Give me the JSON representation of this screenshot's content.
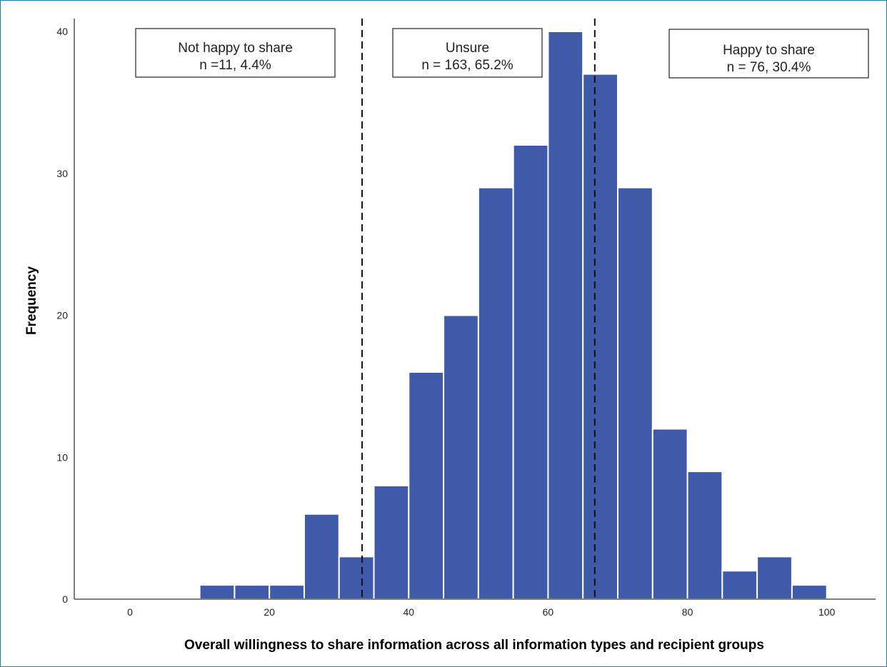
{
  "chart_data": {
    "type": "bar",
    "subtype": "histogram",
    "xlabel": "Overall willingness to share information across all information types and recipient groups",
    "ylabel": "Frequency",
    "xlim": [
      -8,
      107
    ],
    "ylim": [
      0,
      40
    ],
    "xticks": [
      0,
      20,
      40,
      60,
      80,
      100
    ],
    "yticks": [
      0,
      10,
      20,
      30,
      40
    ],
    "bar_color": "#3f5aa8",
    "bar_edge_color": "#ffffff",
    "bin_width": 5,
    "bins": [
      {
        "start": 10,
        "end": 15,
        "value": 1
      },
      {
        "start": 15,
        "end": 20,
        "value": 1
      },
      {
        "start": 20,
        "end": 25,
        "value": 1
      },
      {
        "start": 25,
        "end": 30,
        "value": 6
      },
      {
        "start": 30,
        "end": 35,
        "value": 3
      },
      {
        "start": 35,
        "end": 40,
        "value": 8
      },
      {
        "start": 40,
        "end": 45,
        "value": 16
      },
      {
        "start": 45,
        "end": 50,
        "value": 20
      },
      {
        "start": 50,
        "end": 55,
        "value": 29
      },
      {
        "start": 55,
        "end": 60,
        "value": 32
      },
      {
        "start": 60,
        "end": 65,
        "value": 40
      },
      {
        "start": 65,
        "end": 70,
        "value": 37
      },
      {
        "start": 70,
        "end": 75,
        "value": 29
      },
      {
        "start": 75,
        "end": 80,
        "value": 12
      },
      {
        "start": 80,
        "end": 85,
        "value": 9
      },
      {
        "start": 85,
        "end": 90,
        "value": 2
      },
      {
        "start": 90,
        "end": 95,
        "value": 3
      },
      {
        "start": 95,
        "end": 100,
        "value": 1
      }
    ],
    "reference_lines": [
      {
        "x": 33.3,
        "style": "dashed"
      },
      {
        "x": 66.7,
        "style": "dashed"
      }
    ],
    "annotations": [
      {
        "line1": "Not happy to share",
        "line2": "n =11, 4.4%",
        "position": "top-left"
      },
      {
        "line1": "Unsure",
        "line2": "n = 163, 65.2%",
        "position": "top-center"
      },
      {
        "line1": "Happy to share",
        "line2": "n = 76, 30.4%",
        "position": "top-right"
      }
    ],
    "grid": false,
    "legend": "none"
  }
}
